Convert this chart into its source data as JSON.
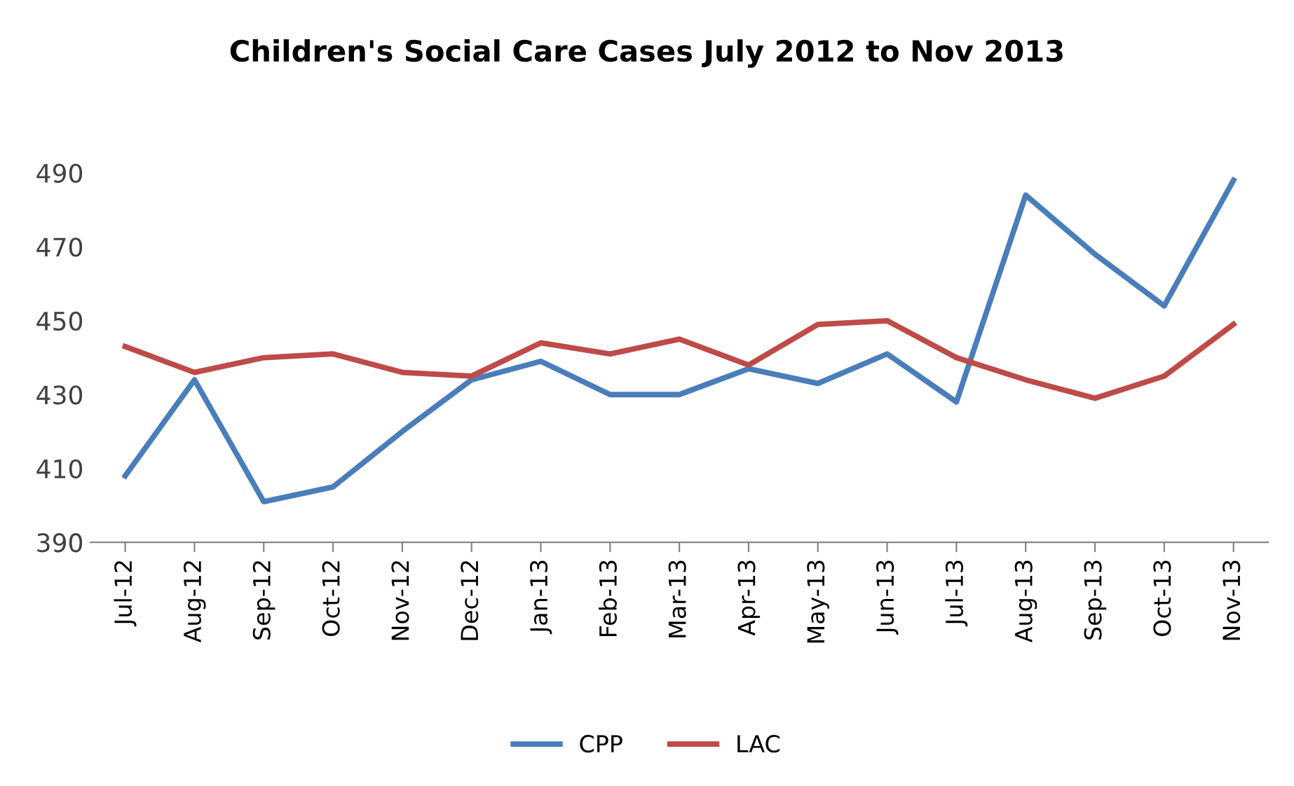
{
  "chart_data": {
    "type": "line",
    "title": "Children's Social Care Cases July 2012 to Nov 2013",
    "categories": [
      "Jul-12",
      "Aug-12",
      "Sep-12",
      "Oct-12",
      "Nov-12",
      "Dec-12",
      "Jan-13",
      "Feb-13",
      "Mar-13",
      "Apr-13",
      "May-13",
      "Jun-13",
      "Jul-13",
      "Aug-13",
      "Sep-13",
      "Oct-13",
      "Nov-13"
    ],
    "series": [
      {
        "name": "CPP",
        "color": "#4a7ebb",
        "values": [
          408,
          434,
          401,
          405,
          420,
          434,
          439,
          430,
          430,
          437,
          433,
          441,
          428,
          484,
          468,
          454,
          488
        ]
      },
      {
        "name": "LAC",
        "color": "#be4b48",
        "values": [
          443,
          436,
          440,
          441,
          436,
          435,
          444,
          441,
          445,
          438,
          449,
          450,
          440,
          434,
          429,
          435,
          449
        ]
      }
    ],
    "ylim": [
      390,
      490
    ],
    "yticks": [
      390,
      410,
      430,
      450,
      470,
      490
    ],
    "grid": false,
    "legend": "bottom",
    "marker": "none",
    "line_style": "solid"
  }
}
